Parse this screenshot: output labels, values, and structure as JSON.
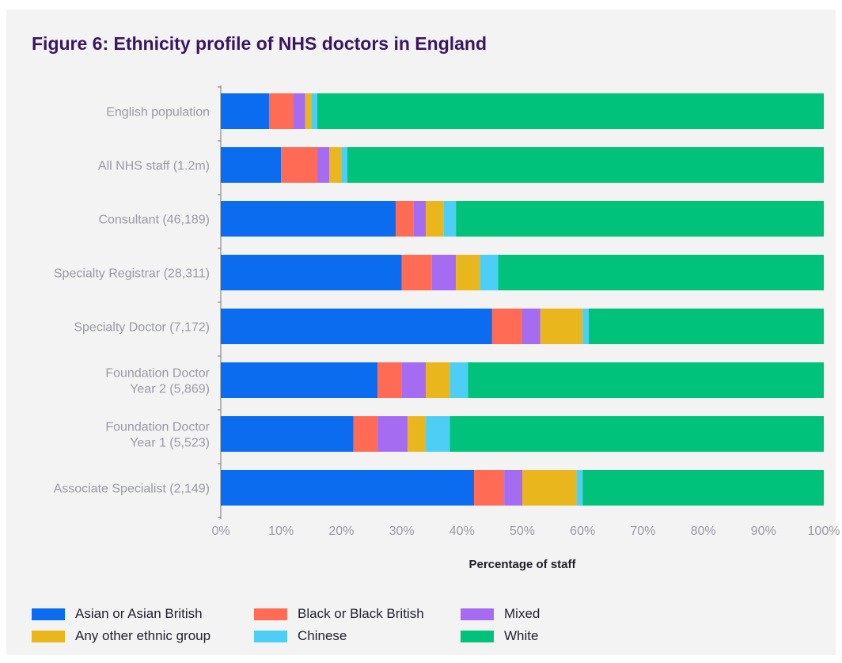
{
  "title": "Figure 6: Ethnicity profile of NHS doctors in England",
  "colors": {
    "Asian or Asian British": "#0b6cf0",
    "Black or Black British": "#ff6b55",
    "Mixed": "#a56cf2",
    "Any other ethnic group": "#e9b71d",
    "Chinese": "#4dcff5",
    "White": "#00c27a"
  },
  "legend": [
    {
      "label": "Asian or Asian British"
    },
    {
      "label": "Black or Black British"
    },
    {
      "label": "Mixed"
    },
    {
      "label": "Any other ethnic group"
    },
    {
      "label": "Chinese"
    },
    {
      "label": "White"
    }
  ],
  "chart_data": {
    "type": "bar",
    "orientation": "horizontal",
    "stacked": true,
    "title": "Figure 6: Ethnicity profile of NHS doctors in England",
    "xlabel": "Percentage of staff",
    "ylabel": "",
    "xlim": [
      0,
      100
    ],
    "x_ticks": [
      "0%",
      "10%",
      "20%",
      "30%",
      "40%",
      "50%",
      "60%",
      "70%",
      "80%",
      "90%",
      "100%"
    ],
    "grid": false,
    "legend_position": "bottom",
    "categories": [
      "English population",
      "All NHS staff (1.2m)",
      "Consultant (46,189)",
      "Specialty Registrar (28,311)",
      "Specialty Doctor (7,172)",
      "Foundation Doctor Year 2 (5,869)",
      "Foundation Doctor Year 1 (5,523)",
      "Associate Specialist (2,149)"
    ],
    "category_lines": [
      [
        "English population"
      ],
      [
        "All NHS staff (1.2m)"
      ],
      [
        "Consultant (46,189)"
      ],
      [
        "Specialty Registrar (28,311)"
      ],
      [
        "Specialty Doctor (7,172)"
      ],
      [
        "Foundation Doctor",
        "Year 2 (5,869)"
      ],
      [
        "Foundation Doctor",
        "Year 1 (5,523)"
      ],
      [
        "Associate Specialist (2,149)"
      ]
    ],
    "series": [
      {
        "name": "Asian or Asian British",
        "values": [
          8,
          10,
          29,
          30,
          45,
          26,
          22,
          42
        ]
      },
      {
        "name": "Black or Black British",
        "values": [
          4,
          6,
          3,
          5,
          5,
          4,
          4,
          5
        ]
      },
      {
        "name": "Mixed",
        "values": [
          2,
          2,
          2,
          4,
          3,
          4,
          5,
          3
        ]
      },
      {
        "name": "Any other ethnic group",
        "values": [
          1,
          2,
          3,
          4,
          7,
          4,
          3,
          9
        ]
      },
      {
        "name": "Chinese",
        "values": [
          1,
          1,
          2,
          3,
          1,
          3,
          4,
          1
        ]
      },
      {
        "name": "White",
        "values": [
          84,
          79,
          61,
          54,
          39,
          59,
          62,
          40
        ]
      }
    ]
  }
}
